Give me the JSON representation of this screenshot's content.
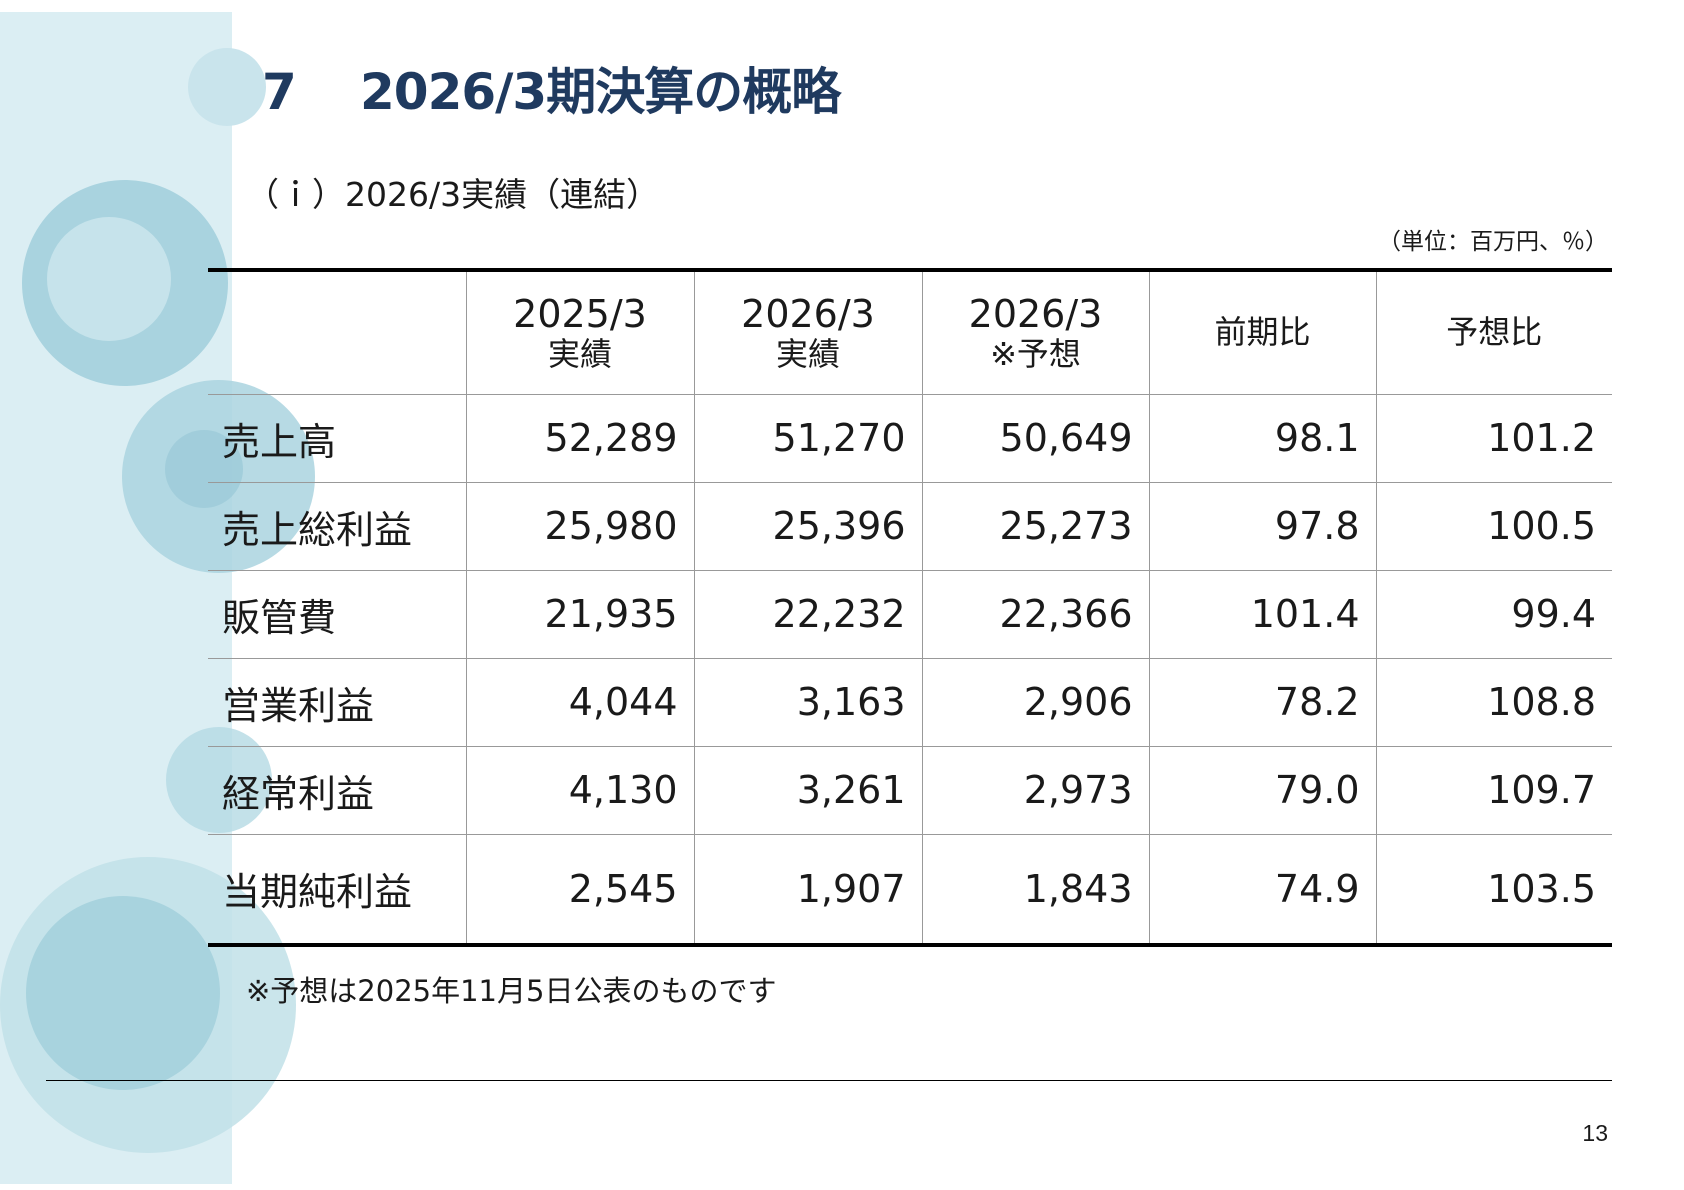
{
  "slide": {
    "section_number": "7",
    "title": "2026/3期決算の概略",
    "subtitle": "（ｉ）2026/3実績（連結）",
    "unit_note": "（単位：百万円、％）",
    "footnote": "※予想は2025年11月5日公表のものです",
    "page_number": "13"
  },
  "table": {
    "columns": [
      {
        "line1": "",
        "line2": ""
      },
      {
        "line1": "2025/3",
        "line2": "実績"
      },
      {
        "line1": "2026/3",
        "line2": "実績"
      },
      {
        "line1": "2026/3",
        "line2": "※予想"
      },
      {
        "line1": "前期比",
        "line2": ""
      },
      {
        "line1": "予想比",
        "line2": ""
      }
    ],
    "rows": [
      {
        "label": "売上高",
        "values": [
          "52,289",
          "51,270",
          "50,649",
          "98.1",
          "101.2"
        ]
      },
      {
        "label": "売上総利益",
        "values": [
          "25,980",
          "25,396",
          "25,273",
          "97.8",
          "100.5"
        ]
      },
      {
        "label": "販管費",
        "values": [
          "21,935",
          "22,232",
          "22,366",
          "101.4",
          "99.4"
        ]
      },
      {
        "label": "営業利益",
        "values": [
          "4,044",
          "3,163",
          "2,906",
          "78.2",
          "108.8"
        ]
      },
      {
        "label": "経常利益",
        "values": [
          "4,130",
          "3,261",
          "2,973",
          "79.0",
          "109.7"
        ]
      },
      {
        "label": "当期純利益",
        "values": [
          "2,545",
          "1,907",
          "1,843",
          "74.9",
          "103.5"
        ]
      }
    ]
  }
}
